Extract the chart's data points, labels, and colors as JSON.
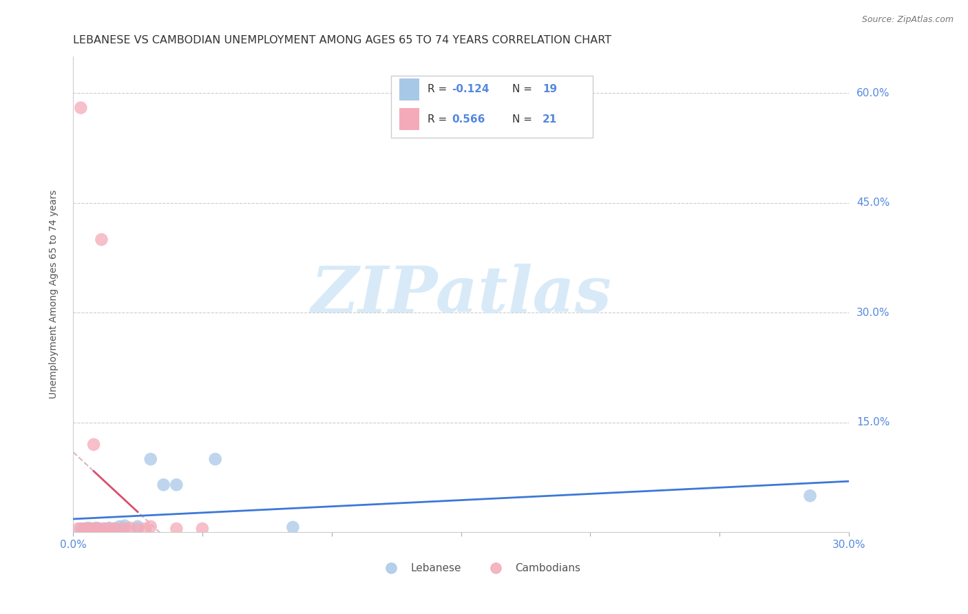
{
  "title": "LEBANESE VS CAMBODIAN UNEMPLOYMENT AMONG AGES 65 TO 74 YEARS CORRELATION CHART",
  "source": "Source: ZipAtlas.com",
  "ylabel": "Unemployment Among Ages 65 to 74 years",
  "xlim": [
    0.0,
    0.3
  ],
  "ylim": [
    0.0,
    0.65
  ],
  "xticks": [
    0.0,
    0.05,
    0.1,
    0.15,
    0.2,
    0.25,
    0.3
  ],
  "xticklabels": [
    "0.0%",
    "",
    "",
    "",
    "",
    "",
    "30.0%"
  ],
  "yticks": [
    0.0,
    0.15,
    0.3,
    0.45,
    0.6
  ],
  "yticklabels_right": [
    "",
    "15.0%",
    "30.0%",
    "45.0%",
    "60.0%"
  ],
  "lebanese_x": [
    0.003,
    0.005,
    0.006,
    0.007,
    0.008,
    0.009,
    0.01,
    0.012,
    0.014,
    0.016,
    0.018,
    0.02,
    0.025,
    0.03,
    0.035,
    0.04,
    0.055,
    0.085,
    0.285
  ],
  "lebanese_y": [
    0.005,
    0.005,
    0.006,
    0.004,
    0.005,
    0.006,
    0.005,
    0.005,
    0.006,
    0.005,
    0.008,
    0.009,
    0.008,
    0.1,
    0.065,
    0.065,
    0.1,
    0.007,
    0.05
  ],
  "cambodian_x": [
    0.002,
    0.003,
    0.004,
    0.005,
    0.006,
    0.007,
    0.008,
    0.009,
    0.01,
    0.011,
    0.012,
    0.014,
    0.016,
    0.018,
    0.02,
    0.022,
    0.025,
    0.028,
    0.03,
    0.04,
    0.05
  ],
  "cambodian_y": [
    0.005,
    0.58,
    0.005,
    0.005,
    0.004,
    0.005,
    0.12,
    0.005,
    0.005,
    0.4,
    0.005,
    0.005,
    0.005,
    0.004,
    0.005,
    0.006,
    0.005,
    0.005,
    0.008,
    0.005,
    0.005
  ],
  "blue_scatter_color": "#a8c8e8",
  "pink_scatter_color": "#f4aab8",
  "blue_line_color": "#3c78d8",
  "pink_line_color": "#d94f6e",
  "dash_line_color": "#d8b8c0",
  "marker_size": 180,
  "marker_alpha": 0.75,
  "background_color": "#ffffff",
  "title_fontsize": 11.5,
  "axis_label_fontsize": 10,
  "tick_fontsize": 11,
  "legend_fontsize": 12,
  "watermark_text": "ZIPatlas",
  "watermark_color": "#d8eaf8",
  "watermark_fontsize": 68
}
